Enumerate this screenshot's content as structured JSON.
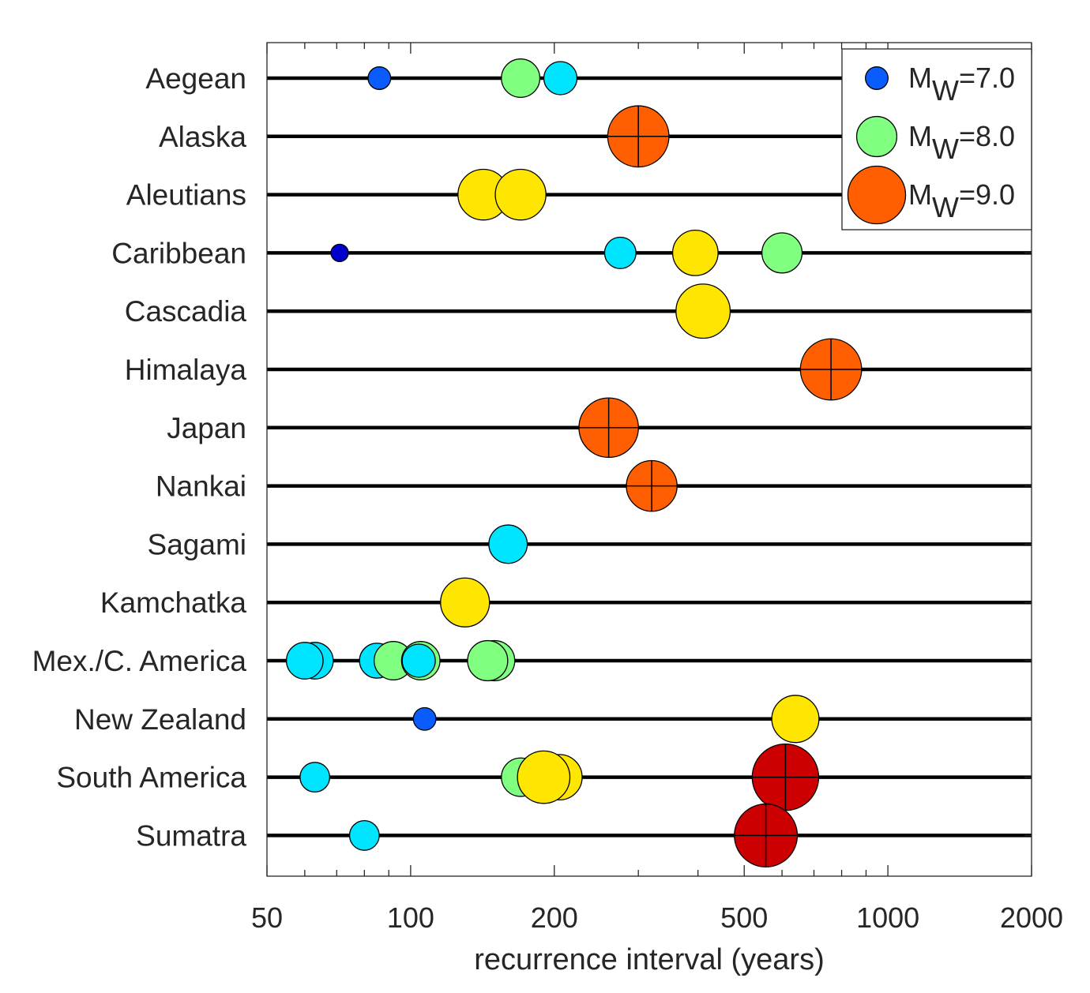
{
  "chart_data": {
    "type": "scatter",
    "xlabel": "recurrence interval (years)",
    "ylabel": "",
    "xscale": "log",
    "xlim": [
      50,
      2000
    ],
    "x_ticks": [
      50,
      100,
      200,
      500,
      1000,
      2000
    ],
    "grid": false,
    "legend_position": "top-right",
    "categories": [
      "Aegean",
      "Alaska",
      "Aleutians",
      "Caribbean",
      "Cascadia",
      "Himalaya",
      "Japan",
      "Nankai",
      "Sagami",
      "Kamchatka",
      "Mex./C. America",
      "New Zealand",
      "South America",
      "Sumatra"
    ],
    "legend": [
      {
        "label_main": "M",
        "label_sub": "W",
        "label_tail": "=7.0",
        "magnitude": 7.0,
        "color": "#0A5CFF"
      },
      {
        "label_main": "M",
        "label_sub": "W",
        "label_tail": "=8.0",
        "magnitude": 8.0,
        "color": "#80FF80"
      },
      {
        "label_main": "M",
        "label_sub": "W",
        "label_tail": "=9.0",
        "magnitude": 9.0,
        "color": "#FF5F00"
      }
    ],
    "points": [
      {
        "region": "Aegean",
        "x": 86,
        "magnitude": 7.0,
        "color": "#0A5CFF"
      },
      {
        "region": "Aegean",
        "x": 170,
        "magnitude": 7.9,
        "color": "#80FF80"
      },
      {
        "region": "Aegean",
        "x": 206,
        "magnitude": 7.6,
        "color": "#00E5FF"
      },
      {
        "region": "Alaska",
        "x": 300,
        "magnitude": 9.2,
        "color": "#FF5F00",
        "cross": true
      },
      {
        "region": "Aleutians",
        "x": 142,
        "magnitude": 8.6,
        "color": "#FFE600"
      },
      {
        "region": "Aleutians",
        "x": 170,
        "magnitude": 8.6,
        "color": "#FFE600"
      },
      {
        "region": "Caribbean",
        "x": 71,
        "magnitude": 6.7,
        "color": "#0000CC"
      },
      {
        "region": "Caribbean",
        "x": 275,
        "magnitude": 7.5,
        "color": "#00E5FF"
      },
      {
        "region": "Caribbean",
        "x": 395,
        "magnitude": 8.3,
        "color": "#FFE600"
      },
      {
        "region": "Caribbean",
        "x": 600,
        "magnitude": 8.0,
        "color": "#80FF80"
      },
      {
        "region": "Cascadia",
        "x": 410,
        "magnitude": 8.8,
        "color": "#FFE600"
      },
      {
        "region": "Himalaya",
        "x": 760,
        "magnitude": 9.2,
        "color": "#FF5F00",
        "cross": true
      },
      {
        "region": "Japan",
        "x": 260,
        "magnitude": 9.1,
        "color": "#FF5F00",
        "cross": true
      },
      {
        "region": "Nankai",
        "x": 320,
        "magnitude": 8.6,
        "color": "#FF5F00",
        "cross": true
      },
      {
        "region": "Sagami",
        "x": 160,
        "magnitude": 7.9,
        "color": "#00E5FF"
      },
      {
        "region": "Kamchatka",
        "x": 130,
        "magnitude": 8.5,
        "color": "#FFE600"
      },
      {
        "region": "Mex./C. America",
        "x": 63,
        "magnitude": 7.8,
        "color": "#00E5FF"
      },
      {
        "region": "Mex./C. America",
        "x": 60,
        "magnitude": 7.8,
        "color": "#00E5FF"
      },
      {
        "region": "Mex./C. America",
        "x": 85,
        "magnitude": 7.7,
        "color": "#00E5FF"
      },
      {
        "region": "Mex./C. America",
        "x": 92,
        "magnitude": 7.9,
        "color": "#80FF80"
      },
      {
        "region": "Mex./C. America",
        "x": 105,
        "magnitude": 7.9,
        "color": "#80FF80"
      },
      {
        "region": "Mex./C. America",
        "x": 104,
        "magnitude": 7.6,
        "color": "#00E5FF"
      },
      {
        "region": "Mex./C. America",
        "x": 150,
        "magnitude": 8.0,
        "color": "#80FF80"
      },
      {
        "region": "Mex./C. America",
        "x": 145,
        "magnitude": 8.0,
        "color": "#80FF80"
      },
      {
        "region": "New Zealand",
        "x": 107,
        "magnitude": 7.0,
        "color": "#0A5CFF"
      },
      {
        "region": "New Zealand",
        "x": 640,
        "magnitude": 8.4,
        "color": "#FFE600"
      },
      {
        "region": "South America",
        "x": 63,
        "magnitude": 7.4,
        "color": "#00E5FF"
      },
      {
        "region": "South America",
        "x": 170,
        "magnitude": 7.9,
        "color": "#80FF80"
      },
      {
        "region": "South America",
        "x": 205,
        "magnitude": 8.3,
        "color": "#FFE600"
      },
      {
        "region": "South America",
        "x": 190,
        "magnitude": 8.7,
        "color": "#FFE600"
      },
      {
        "region": "South America",
        "x": 610,
        "magnitude": 9.5,
        "color": "#CC0000",
        "cross": true
      },
      {
        "region": "Sumatra",
        "x": 80,
        "magnitude": 7.4,
        "color": "#00E5FF"
      },
      {
        "region": "Sumatra",
        "x": 555,
        "magnitude": 9.3,
        "color": "#CC0000",
        "cross": true
      }
    ]
  }
}
